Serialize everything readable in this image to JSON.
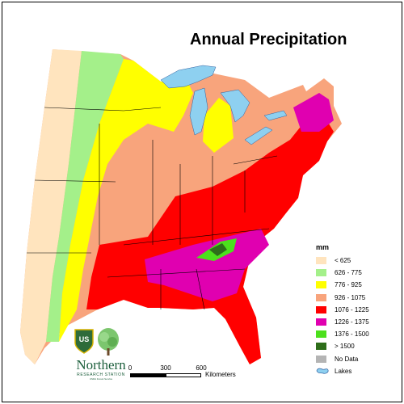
{
  "title": "Annual Precipitation",
  "legend": {
    "unit": "mm",
    "items": [
      {
        "label": "< 625",
        "color": "#FFE4BE"
      },
      {
        "label": "626 - 775",
        "color": "#A4F08A"
      },
      {
        "label": "776 - 925",
        "color": "#FFFF00"
      },
      {
        "label": "926 - 1075",
        "color": "#F8A47C"
      },
      {
        "label": "1076 - 1225",
        "color": "#FF0000"
      },
      {
        "label": "1226 - 1375",
        "color": "#E000B0"
      },
      {
        "label": "1376 - 1500",
        "color": "#4CE01C"
      },
      {
        "label": "> 1500",
        "color": "#2E6E1A"
      },
      {
        "label": "No Data",
        "color": "#B4B4B4"
      }
    ],
    "lakes_label": "Lakes",
    "lakes_color": "#8ED0F0"
  },
  "scale": {
    "ticks": [
      "0",
      "300",
      "600"
    ],
    "unit": "Kilometers"
  },
  "logo": {
    "shield_text": "US",
    "name": "Northern",
    "subtitle": "RESEARCH STATION",
    "tagline": "USDA Forest Service"
  }
}
